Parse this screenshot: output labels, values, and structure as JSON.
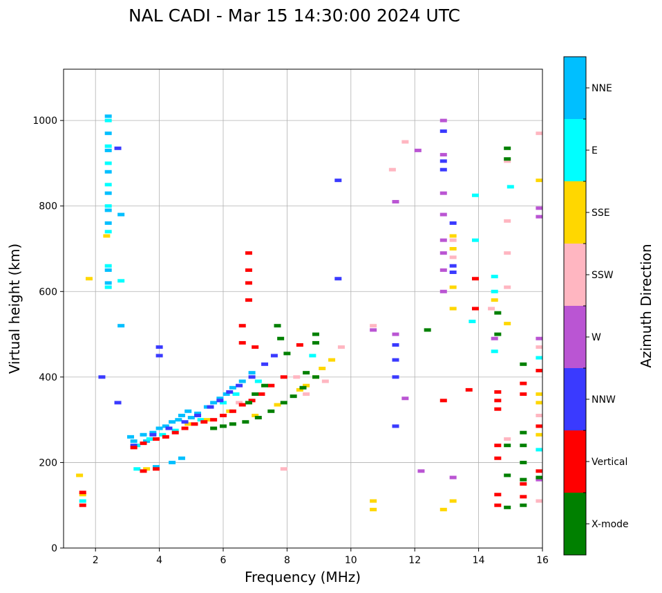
{
  "chart_data": {
    "type": "scatter",
    "title": "NAL CADI - Mar 15 14:30:00 2024 UTC",
    "xlabel": "Frequency (MHz)",
    "ylabel": "Virtual height (km)",
    "xlim": [
      1,
      16
    ],
    "ylim": [
      0,
      1120
    ],
    "xticks": [
      2,
      4,
      6,
      8,
      10,
      12,
      14,
      16
    ],
    "yticks": [
      0,
      200,
      400,
      600,
      800,
      1000
    ],
    "grid": true,
    "colorbar": {
      "label": "Azimuth Direction",
      "categories": [
        {
          "name": "NNE",
          "color": "#00BFFF"
        },
        {
          "name": "E",
          "color": "#00FFFF"
        },
        {
          "name": "SSE",
          "color": "#FFD700"
        },
        {
          "name": "SSW",
          "color": "#FFB6C1"
        },
        {
          "name": "W",
          "color": "#BA55D3"
        },
        {
          "name": "NNW",
          "color": "#3A3AFF"
        },
        {
          "name": "Vertical",
          "color": "#FF0000"
        },
        {
          "name": "X-mode",
          "color": "#008000"
        }
      ]
    },
    "series": [
      {
        "name": "NNE",
        "points": [
          [
            2.4,
            1010
          ],
          [
            2.4,
            970
          ],
          [
            2.4,
            930
          ],
          [
            2.4,
            880
          ],
          [
            2.4,
            830
          ],
          [
            2.4,
            790
          ],
          [
            2.4,
            760
          ],
          [
            2.4,
            650
          ],
          [
            2.4,
            620
          ],
          [
            3.1,
            260
          ],
          [
            3.2,
            250
          ],
          [
            3.5,
            265
          ],
          [
            3.6,
            250
          ],
          [
            3.8,
            270
          ],
          [
            4.0,
            280
          ],
          [
            4.2,
            285
          ],
          [
            4.4,
            295
          ],
          [
            4.6,
            300
          ],
          [
            4.7,
            310
          ],
          [
            4.9,
            320
          ],
          [
            5.0,
            305
          ],
          [
            5.2,
            315
          ],
          [
            5.5,
            330
          ],
          [
            5.7,
            340
          ],
          [
            5.9,
            350
          ],
          [
            6.1,
            360
          ],
          [
            6.3,
            375
          ],
          [
            6.6,
            390
          ],
          [
            6.9,
            410
          ],
          [
            3.9,
            190
          ],
          [
            4.4,
            200
          ],
          [
            4.7,
            210
          ],
          [
            2.8,
            780
          ],
          [
            2.8,
            520
          ]
        ]
      },
      {
        "name": "E",
        "points": [
          [
            2.4,
            1000
          ],
          [
            2.4,
            940
          ],
          [
            2.4,
            900
          ],
          [
            2.4,
            850
          ],
          [
            2.4,
            800
          ],
          [
            2.4,
            740
          ],
          [
            2.4,
            660
          ],
          [
            2.4,
            610
          ],
          [
            3.3,
            240
          ],
          [
            3.7,
            255
          ],
          [
            4.1,
            265
          ],
          [
            4.5,
            275
          ],
          [
            5.3,
            300
          ],
          [
            6.0,
            340
          ],
          [
            6.4,
            360
          ],
          [
            7.1,
            390
          ],
          [
            8.8,
            450
          ],
          [
            13.9,
            825
          ],
          [
            13.9,
            720
          ],
          [
            14.5,
            635
          ],
          [
            14.5,
            600
          ],
          [
            14.5,
            460
          ],
          [
            15.0,
            845
          ],
          [
            15.9,
            445
          ],
          [
            15.9,
            230
          ],
          [
            13.8,
            530
          ],
          [
            2.8,
            625
          ],
          [
            3.3,
            185
          ],
          [
            1.6,
            110
          ]
        ]
      },
      {
        "name": "SSE",
        "points": [
          [
            2.35,
            730
          ],
          [
            1.8,
            630
          ],
          [
            3.6,
            185
          ],
          [
            4.9,
            290
          ],
          [
            5.5,
            300
          ],
          [
            6.2,
            320
          ],
          [
            7.0,
            310
          ],
          [
            7.7,
            335
          ],
          [
            8.4,
            370
          ],
          [
            8.6,
            380
          ],
          [
            8.9,
            400
          ],
          [
            9.1,
            420
          ],
          [
            9.4,
            440
          ],
          [
            10.7,
            90
          ],
          [
            10.7,
            110
          ],
          [
            12.9,
            90
          ],
          [
            13.2,
            110
          ],
          [
            13.2,
            730
          ],
          [
            13.2,
            700
          ],
          [
            13.2,
            610
          ],
          [
            13.2,
            560
          ],
          [
            14.5,
            580
          ],
          [
            14.9,
            525
          ],
          [
            15.9,
            860
          ],
          [
            15.9,
            360
          ],
          [
            15.9,
            340
          ],
          [
            15.9,
            265
          ],
          [
            1.5,
            170
          ],
          [
            1.6,
            125
          ]
        ]
      },
      {
        "name": "SSW",
        "points": [
          [
            7.9,
            185
          ],
          [
            8.3,
            400
          ],
          [
            8.6,
            360
          ],
          [
            9.2,
            390
          ],
          [
            9.7,
            470
          ],
          [
            10.7,
            520
          ],
          [
            11.3,
            885
          ],
          [
            11.7,
            950
          ],
          [
            13.2,
            720
          ],
          [
            13.2,
            680
          ],
          [
            14.4,
            560
          ],
          [
            14.9,
            905
          ],
          [
            14.9,
            765
          ],
          [
            14.9,
            690
          ],
          [
            14.9,
            610
          ],
          [
            14.9,
            255
          ],
          [
            15.9,
            970
          ],
          [
            15.9,
            470
          ],
          [
            15.9,
            310
          ],
          [
            15.9,
            110
          ],
          [
            5.6,
            330
          ],
          [
            6.5,
            340
          ]
        ]
      },
      {
        "name": "W",
        "points": [
          [
            11.4,
            810
          ],
          [
            12.1,
            930
          ],
          [
            12.9,
            1000
          ],
          [
            12.9,
            920
          ],
          [
            12.9,
            830
          ],
          [
            12.9,
            780
          ],
          [
            12.9,
            720
          ],
          [
            12.9,
            690
          ],
          [
            12.9,
            650
          ],
          [
            12.9,
            600
          ],
          [
            13.2,
            165
          ],
          [
            12.2,
            180
          ],
          [
            14.5,
            490
          ],
          [
            15.9,
            795
          ],
          [
            15.9,
            775
          ],
          [
            15.9,
            490
          ],
          [
            10.7,
            510
          ],
          [
            11.4,
            500
          ],
          [
            11.7,
            350
          ],
          [
            15.9,
            160
          ]
        ]
      },
      {
        "name": "NNW",
        "points": [
          [
            3.2,
            240
          ],
          [
            3.8,
            265
          ],
          [
            4.3,
            280
          ],
          [
            4.8,
            295
          ],
          [
            5.2,
            310
          ],
          [
            5.6,
            330
          ],
          [
            5.9,
            345
          ],
          [
            6.2,
            365
          ],
          [
            6.5,
            380
          ],
          [
            6.9,
            400
          ],
          [
            7.3,
            430
          ],
          [
            7.6,
            450
          ],
          [
            2.2,
            400
          ],
          [
            2.7,
            935
          ],
          [
            9.6,
            860
          ],
          [
            9.6,
            630
          ],
          [
            12.9,
            975
          ],
          [
            12.9,
            905
          ],
          [
            12.9,
            885
          ],
          [
            13.2,
            760
          ],
          [
            13.2,
            660
          ],
          [
            13.2,
            645
          ],
          [
            11.4,
            475
          ],
          [
            11.4,
            440
          ],
          [
            11.4,
            400
          ],
          [
            11.4,
            285
          ],
          [
            2.7,
            340
          ],
          [
            4.0,
            470
          ],
          [
            4.0,
            450
          ]
        ]
      },
      {
        "name": "Vertical",
        "points": [
          [
            3.2,
            235
          ],
          [
            3.5,
            245
          ],
          [
            3.9,
            255
          ],
          [
            4.2,
            260
          ],
          [
            4.5,
            270
          ],
          [
            4.8,
            280
          ],
          [
            5.1,
            290
          ],
          [
            5.4,
            295
          ],
          [
            5.7,
            300
          ],
          [
            6.0,
            310
          ],
          [
            6.3,
            320
          ],
          [
            6.6,
            335
          ],
          [
            6.9,
            345
          ],
          [
            7.2,
            360
          ],
          [
            7.5,
            380
          ],
          [
            7.9,
            400
          ],
          [
            3.5,
            180
          ],
          [
            3.9,
            185
          ],
          [
            6.6,
            480
          ],
          [
            6.6,
            520
          ],
          [
            6.8,
            580
          ],
          [
            6.8,
            620
          ],
          [
            6.8,
            650
          ],
          [
            6.8,
            690
          ],
          [
            7.0,
            470
          ],
          [
            12.9,
            345
          ],
          [
            13.7,
            370
          ],
          [
            13.9,
            630
          ],
          [
            13.9,
            560
          ],
          [
            14.6,
            365
          ],
          [
            14.6,
            345
          ],
          [
            14.6,
            325
          ],
          [
            14.6,
            240
          ],
          [
            14.6,
            210
          ],
          [
            14.6,
            125
          ],
          [
            14.6,
            100
          ],
          [
            15.4,
            385
          ],
          [
            15.4,
            360
          ],
          [
            15.4,
            150
          ],
          [
            15.4,
            120
          ],
          [
            15.9,
            415
          ],
          [
            15.9,
            285
          ],
          [
            15.9,
            180
          ],
          [
            1.6,
            130
          ],
          [
            1.6,
            100
          ],
          [
            8.4,
            475
          ]
        ]
      },
      {
        "name": "X-mode",
        "points": [
          [
            5.7,
            280
          ],
          [
            6.0,
            285
          ],
          [
            6.3,
            290
          ],
          [
            6.7,
            295
          ],
          [
            7.1,
            305
          ],
          [
            7.5,
            320
          ],
          [
            7.9,
            340
          ],
          [
            8.2,
            355
          ],
          [
            8.5,
            375
          ],
          [
            8.9,
            400
          ],
          [
            8.9,
            480
          ],
          [
            8.9,
            500
          ],
          [
            8.6,
            410
          ],
          [
            7.7,
            520
          ],
          [
            7.8,
            490
          ],
          [
            8.0,
            455
          ],
          [
            7.3,
            380
          ],
          [
            7.0,
            360
          ],
          [
            6.8,
            340
          ],
          [
            12.4,
            510
          ],
          [
            14.6,
            550
          ],
          [
            14.6,
            500
          ],
          [
            14.9,
            935
          ],
          [
            14.9,
            910
          ],
          [
            15.4,
            430
          ],
          [
            15.4,
            270
          ],
          [
            15.4,
            240
          ],
          [
            15.4,
            200
          ],
          [
            15.4,
            160
          ],
          [
            15.4,
            100
          ],
          [
            14.9,
            240
          ],
          [
            14.9,
            170
          ],
          [
            15.9,
            165
          ],
          [
            14.9,
            95
          ]
        ]
      }
    ]
  }
}
